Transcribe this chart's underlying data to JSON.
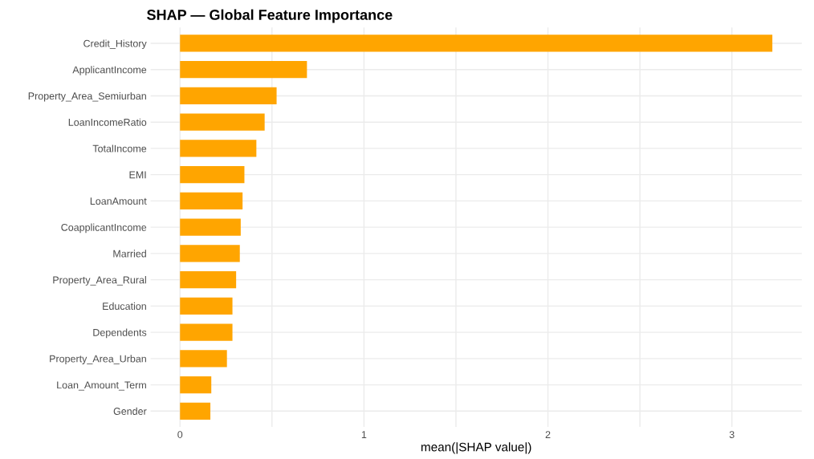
{
  "chart_data": {
    "type": "bar",
    "orientation": "horizontal",
    "title": "SHAP — Global Feature Importance",
    "xlabel": "mean(|SHAP value|)",
    "categories": [
      "Credit_History",
      "ApplicantIncome",
      "Property_Area_Semiurban",
      "LoanIncomeRatio",
      "TotalIncome",
      "EMI",
      "LoanAmount",
      "CoapplicantIncome",
      "Married",
      "Property_Area_Rural",
      "Education",
      "Dependents",
      "Property_Area_Urban",
      "Loan_Amount_Term",
      "Gender"
    ],
    "values": [
      3.22,
      0.69,
      0.525,
      0.46,
      0.415,
      0.35,
      0.34,
      0.33,
      0.325,
      0.305,
      0.285,
      0.285,
      0.255,
      0.17,
      0.165
    ],
    "color": "#ffa500",
    "xlim": [
      -0.16,
      3.38
    ],
    "xticks": [
      0,
      {
        "value": 0.5,
        "label": null
      },
      1,
      {
        "value": 1.5,
        "label": null
      },
      2,
      {
        "value": 2.5,
        "label": null
      },
      3
    ],
    "grid": true
  }
}
